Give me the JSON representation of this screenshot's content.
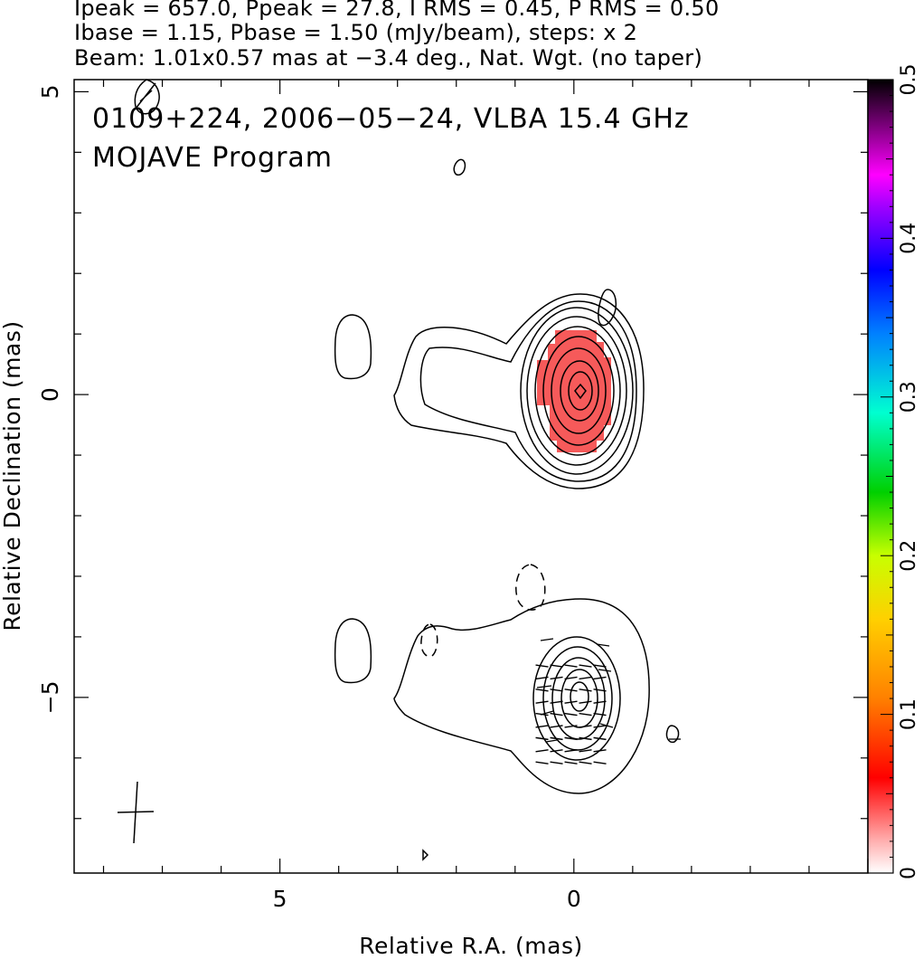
{
  "header": {
    "line1": "Ipeak = 657.0, Ppeak = 27.8, I RMS = 0.45, P RMS = 0.50",
    "line2": "Ibase = 1.15, Pbase = 1.50 (mJy/beam), steps: x 2",
    "line3": "Beam: 1.01x0.57 mas at −3.4 deg., Nat. Wgt. (no taper)"
  },
  "chart_data": {
    "type": "heatmap",
    "annotation_line1": "0109+224, 2006−05−24, VLBA 15.4 GHz",
    "annotation_line2": "MOJAVE Program",
    "xlabel": "Relative R.A. (mas)",
    "ylabel": "Relative Declination (mas)",
    "x_ticks": [
      5,
      0
    ],
    "x_tick_labels": [
      "5",
      "0"
    ],
    "y_ticks": [
      5,
      0,
      -5
    ],
    "y_tick_labels": [
      "5",
      "0",
      "−5"
    ],
    "xlim": [
      8.5,
      -5
    ],
    "ylim": [
      -7.9,
      5.2
    ],
    "x_reversed": true,
    "colorbar": {
      "range": [
        0,
        0.5
      ],
      "ticks": [
        0,
        0.1,
        0.2,
        0.3,
        0.4,
        0.5
      ],
      "tick_labels": [
        "0",
        "0.1",
        "0.2",
        "0.3",
        "0.4",
        "0.5"
      ]
    },
    "ipeak_mJy_per_beam": 657.0,
    "ppeak_mJy_per_beam": 27.8,
    "i_rms": 0.45,
    "p_rms": 0.5,
    "ibase": 1.15,
    "pbase": 1.5,
    "contour_step": "x 2",
    "beam_major_mas": 1.01,
    "beam_minor_mas": 0.57,
    "beam_pa_deg": -3.4,
    "core_position_mas": [
      0,
      0
    ],
    "panels": [
      "total intensity + fractional polarization (top)",
      "total intensity + EVPA (bottom, shifted by -5 mas)"
    ]
  }
}
